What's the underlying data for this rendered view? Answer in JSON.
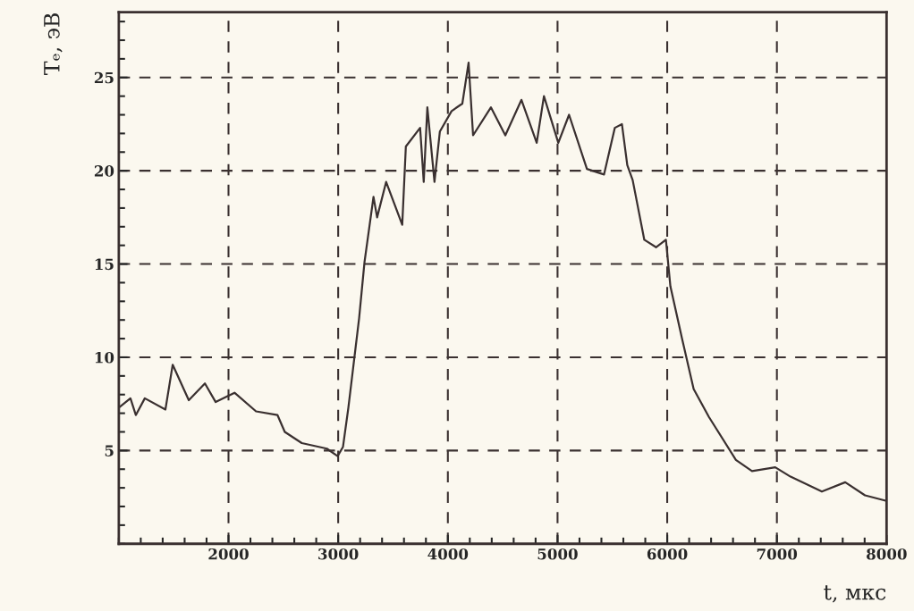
{
  "chart_data": {
    "type": "line",
    "xlabel": "t, мкс",
    "ylabel": "Tₑ, эВ",
    "xlim": [
      1000,
      8000
    ],
    "ylim": [
      0,
      28.5
    ],
    "xticks": [
      2000,
      3000,
      4000,
      5000,
      6000,
      7000,
      8000
    ],
    "yticks": [
      5,
      10,
      15,
      20,
      25
    ],
    "grid": true,
    "line_style": "solid",
    "marker": "none",
    "series": [
      {
        "color": "#3a3030",
        "x": [
          1000,
          1106,
          1155,
          1237,
          1425,
          1491,
          1638,
          1785,
          1883,
          2055,
          2251,
          2447,
          2513,
          2668,
          2897,
          2995,
          3044,
          3093,
          3191,
          3240,
          3322,
          3355,
          3437,
          3584,
          3617,
          3747,
          3780,
          3813,
          3878,
          3927,
          4034,
          4132,
          4189,
          4230,
          4393,
          4524,
          4671,
          4810,
          4876,
          5007,
          5105,
          5268,
          5424,
          5522,
          5587,
          5636,
          5685,
          5791,
          5898,
          5988,
          6029,
          6135,
          6241,
          6380,
          6626,
          6773,
          6985,
          7124,
          7410,
          7623,
          7803,
          7999
        ],
        "values": [
          7.3,
          7.8,
          6.9,
          7.8,
          7.2,
          9.6,
          7.7,
          8.6,
          7.6,
          8.1,
          7.1,
          6.9,
          6.0,
          5.4,
          5.1,
          4.7,
          5.2,
          7.3,
          12.1,
          15.1,
          18.6,
          17.5,
          19.4,
          17.1,
          21.3,
          22.3,
          19.4,
          23.4,
          19.4,
          22.1,
          23.2,
          23.6,
          25.8,
          21.9,
          23.4,
          21.9,
          23.8,
          21.5,
          24.0,
          21.5,
          23.0,
          20.1,
          19.8,
          22.3,
          22.5,
          20.3,
          19.5,
          16.3,
          15.9,
          16.3,
          13.8,
          11.0,
          8.3,
          6.8,
          4.5,
          3.9,
          4.1,
          3.6,
          2.8,
          3.3,
          2.6,
          2.3
        ]
      }
    ]
  }
}
